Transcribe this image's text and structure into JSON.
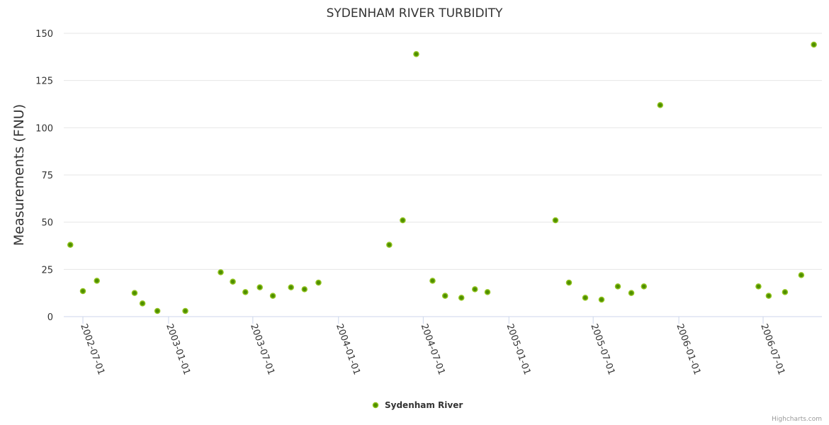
{
  "chart_data": {
    "type": "scatter",
    "title": "SYDENHAM RIVER TURBIDITY",
    "xlabel": "",
    "ylabel": "Measurements (FNU)",
    "ylim": [
      0,
      150
    ],
    "yticks": [
      0,
      25,
      50,
      75,
      100,
      125,
      150
    ],
    "xlim": [
      "2002-05-20",
      "2006-10-30"
    ],
    "xticks": [
      "2002-07-01",
      "2003-01-01",
      "2003-07-01",
      "2004-01-01",
      "2004-07-01",
      "2005-01-01",
      "2005-07-01",
      "2006-01-01",
      "2006-07-01"
    ],
    "grid": true,
    "legend_position": "bottom-center",
    "credit": "Highcharts.com",
    "colors": {
      "marker_fill": "#4f8f00",
      "marker_stroke": "#8fc21c",
      "grid": "#e6e6e6",
      "axis": "#ccd6eb"
    },
    "series": [
      {
        "name": "Sydenham River",
        "points": [
          [
            "2002-06-04",
            38
          ],
          [
            "2002-07-01",
            13.5
          ],
          [
            "2002-07-31",
            19
          ],
          [
            "2002-10-20",
            12.5
          ],
          [
            "2002-11-06",
            7
          ],
          [
            "2002-12-08",
            3
          ],
          [
            "2003-02-06",
            3
          ],
          [
            "2003-04-23",
            23.5
          ],
          [
            "2003-05-19",
            18.5
          ],
          [
            "2003-06-15",
            13
          ],
          [
            "2003-07-16",
            15.5
          ],
          [
            "2003-08-13",
            11
          ],
          [
            "2003-09-21",
            15.5
          ],
          [
            "2003-10-20",
            14.5
          ],
          [
            "2003-11-19",
            18
          ],
          [
            "2004-04-19",
            38
          ],
          [
            "2004-05-18",
            51
          ],
          [
            "2004-06-16",
            139
          ],
          [
            "2004-07-21",
            19
          ],
          [
            "2004-08-17",
            11
          ],
          [
            "2004-09-21",
            10
          ],
          [
            "2004-10-20",
            14.5
          ],
          [
            "2004-11-16",
            13
          ],
          [
            "2005-04-11",
            51
          ],
          [
            "2005-05-10",
            18
          ],
          [
            "2005-06-14",
            10
          ],
          [
            "2005-07-19",
            9
          ],
          [
            "2005-08-23",
            16
          ],
          [
            "2005-09-21",
            12.5
          ],
          [
            "2005-10-18",
            16
          ],
          [
            "2005-11-22",
            112
          ],
          [
            "2006-06-21",
            16
          ],
          [
            "2006-07-13",
            11
          ],
          [
            "2006-08-17",
            13
          ],
          [
            "2006-09-21",
            22
          ],
          [
            "2006-10-18",
            144
          ]
        ]
      }
    ]
  }
}
